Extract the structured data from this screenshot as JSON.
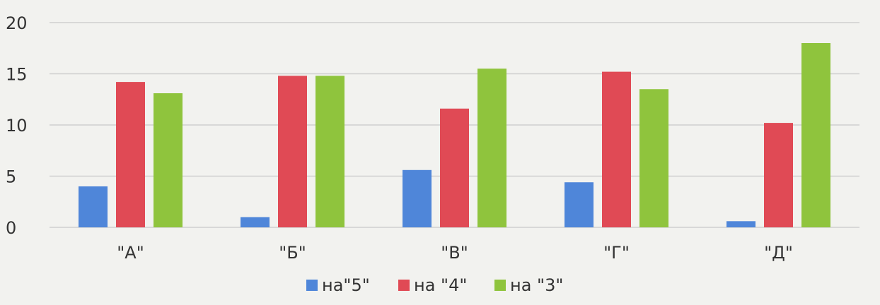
{
  "chart_data": {
    "type": "bar",
    "title": "",
    "xlabel": "",
    "ylabel": "",
    "categories": [
      "\"А\"",
      "\"Б\"",
      "\"В\"",
      "\"Г\"",
      "\"Д\""
    ],
    "series": [
      {
        "name": "на\"5\"",
        "color": "#4f86d9",
        "values": [
          4,
          1,
          5.6,
          4.4,
          0.6
        ]
      },
      {
        "name": "на \"4\"",
        "color": "#e04a55",
        "values": [
          14.2,
          14.8,
          11.6,
          15.2,
          10.2
        ]
      },
      {
        "name": "на \"3\"",
        "color": "#8fc43d",
        "values": [
          13.1,
          14.8,
          15.5,
          13.5,
          18
        ]
      }
    ],
    "yticks": [
      0,
      5,
      10,
      15,
      20
    ],
    "ylim": [
      0,
      20
    ],
    "grid": true,
    "legend_position": "bottom-center"
  }
}
